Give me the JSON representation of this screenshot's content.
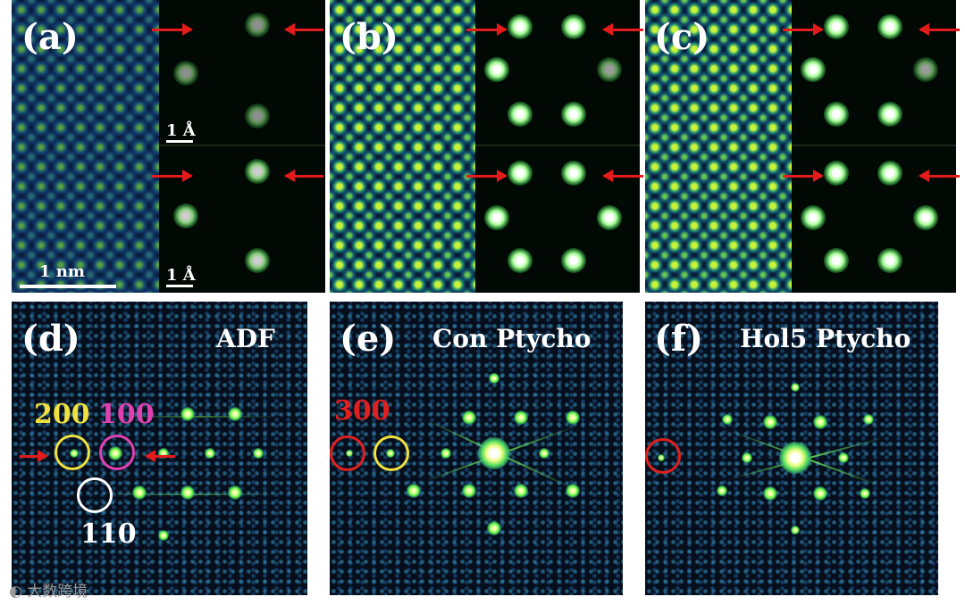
{
  "panels": {
    "a": {
      "label": "(a)",
      "scale_main": "1 nm",
      "scale_top": "1 Å",
      "scale_bottom": "1 Å"
    },
    "b": {
      "label": "(b)"
    },
    "c": {
      "label": "(c)"
    },
    "d": {
      "label": "(d)",
      "title": "ADF",
      "index_200": "200",
      "index_100": "100",
      "index_110": "110"
    },
    "e": {
      "label": "(e)",
      "title": "Con Ptycho",
      "index_300": "300"
    },
    "f": {
      "label": "(f)",
      "title": "Hol5 Ptycho"
    }
  },
  "watermark": "大数跨境",
  "colors": {
    "arrow": "#e31b1b",
    "ring_200": "#f0e040",
    "ring_100": "#e040b0",
    "ring_110": "#ffffff",
    "ring_300": "#e02020"
  }
}
